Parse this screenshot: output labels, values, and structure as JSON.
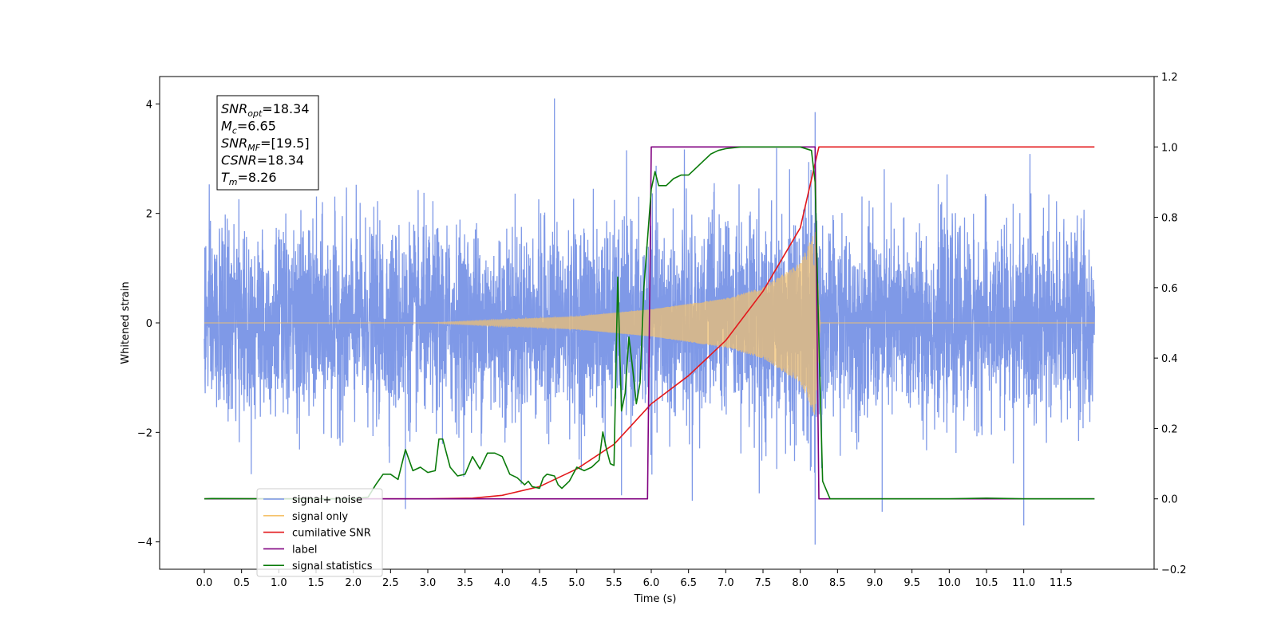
{
  "chart_data": {
    "type": "line",
    "xlabel": "Time (s)",
    "ylabel": "Whitened strain",
    "xlim": [
      -0.6,
      12.75
    ],
    "ylim": [
      -4.5,
      4.5
    ],
    "y2lim": [
      -0.2,
      1.2
    ],
    "x_ticks": [
      0.0,
      0.5,
      1.0,
      1.5,
      2.0,
      2.5,
      3.0,
      3.5,
      4.0,
      4.5,
      5.0,
      5.5,
      6.0,
      6.5,
      7.0,
      7.5,
      8.0,
      8.5,
      9.0,
      9.5,
      10.0,
      10.5,
      11.0,
      11.5
    ],
    "x_tick_labels": [
      "0.0",
      "0.5",
      "1.0",
      "1.5",
      "2.0",
      "2.5",
      "3.0",
      "3.5",
      "4.0",
      "4.5",
      "5.0",
      "5.5",
      "6.0",
      "6.5",
      "7.0",
      "7.5",
      "8.0",
      "8.5",
      "9.0",
      "9.5",
      "10.0",
      "10.5",
      "11.0",
      "11.5"
    ],
    "y_ticks": [
      -4,
      -2,
      0,
      2,
      4
    ],
    "y_tick_labels": [
      "−4",
      "−2",
      "0",
      "2",
      "4"
    ],
    "y2_ticks": [
      -0.2,
      0.0,
      0.2,
      0.4,
      0.6,
      0.8,
      1.0,
      1.2
    ],
    "y2_tick_labels": [
      "−0.2",
      "0.0",
      "0.2",
      "0.4",
      "0.6",
      "0.8",
      "1.0",
      "1.2"
    ],
    "legend_position": "lower-left",
    "annotation": {
      "lines": [
        {
          "main": "SNR",
          "sub": "opt",
          "rest": "=18.34"
        },
        {
          "main": "M",
          "sub": "c",
          "rest": "=6.65"
        },
        {
          "main": "SNR",
          "sub": "MF",
          "rest": "=[19.5]"
        },
        {
          "main": "CSNR",
          "sub": "",
          "rest": "=18.34"
        },
        {
          "main": "T",
          "sub": "m",
          "rest": "=8.26"
        }
      ]
    },
    "series": [
      {
        "name": "signal+ noise",
        "color": "#7893e6",
        "axis": "left",
        "x_start": 0.0,
        "x_end": 11.95,
        "noise_std": 0.85,
        "noise_clip": 3.3,
        "notable_peaks": [
          [
            4.7,
            4.1
          ],
          [
            8.2,
            3.85
          ],
          [
            8.2,
            -4.05
          ],
          [
            5.6,
            -3.15
          ],
          [
            11.0,
            -3.7
          ],
          [
            9.1,
            -3.45
          ],
          [
            2.7,
            -3.4
          ]
        ]
      },
      {
        "name": "signal only",
        "color": "#f5c26b",
        "axis": "left",
        "x_start": 0.0,
        "x_end": 11.95,
        "chirp_start": 3.0,
        "chirp_peak_time": 8.2,
        "chirp_end": 8.27,
        "envelope": [
          [
            3.0,
            0.0
          ],
          [
            5.0,
            0.12
          ],
          [
            6.0,
            0.25
          ],
          [
            7.0,
            0.45
          ],
          [
            7.5,
            0.65
          ],
          [
            8.0,
            1.1
          ],
          [
            8.2,
            1.7
          ],
          [
            8.27,
            0.0
          ]
        ]
      },
      {
        "name": "cumilative SNR",
        "color": "#e3191c",
        "axis": "right",
        "points": [
          [
            0.0,
            0.0
          ],
          [
            3.0,
            0.0
          ],
          [
            3.6,
            0.002
          ],
          [
            4.0,
            0.01
          ],
          [
            4.5,
            0.035
          ],
          [
            5.0,
            0.085
          ],
          [
            5.5,
            0.155
          ],
          [
            6.0,
            0.27
          ],
          [
            6.5,
            0.35
          ],
          [
            7.0,
            0.45
          ],
          [
            7.5,
            0.59
          ],
          [
            8.0,
            0.77
          ],
          [
            8.25,
            1.0
          ],
          [
            11.95,
            1.0
          ]
        ]
      },
      {
        "name": "label",
        "color": "#800080",
        "axis": "right",
        "points": [
          [
            0.0,
            0.0
          ],
          [
            5.95,
            0.0
          ],
          [
            6.0,
            1.0
          ],
          [
            8.2,
            1.0
          ],
          [
            8.25,
            0.0
          ],
          [
            11.95,
            0.0
          ]
        ]
      },
      {
        "name": "signal statistics",
        "color": "#0a7b0a",
        "axis": "right",
        "points": [
          [
            0.0,
            0.0
          ],
          [
            0.1,
            0.001
          ],
          [
            1.0,
            0.0
          ],
          [
            2.0,
            0.0
          ],
          [
            2.2,
            0.005
          ],
          [
            2.3,
            0.04
          ],
          [
            2.4,
            0.07
          ],
          [
            2.5,
            0.07
          ],
          [
            2.6,
            0.055
          ],
          [
            2.7,
            0.14
          ],
          [
            2.8,
            0.08
          ],
          [
            2.9,
            0.09
          ],
          [
            3.0,
            0.075
          ],
          [
            3.1,
            0.08
          ],
          [
            3.15,
            0.17
          ],
          [
            3.2,
            0.17
          ],
          [
            3.3,
            0.09
          ],
          [
            3.4,
            0.065
          ],
          [
            3.5,
            0.07
          ],
          [
            3.6,
            0.12
          ],
          [
            3.7,
            0.085
          ],
          [
            3.8,
            0.13
          ],
          [
            3.9,
            0.13
          ],
          [
            4.0,
            0.12
          ],
          [
            4.1,
            0.07
          ],
          [
            4.2,
            0.06
          ],
          [
            4.3,
            0.04
          ],
          [
            4.35,
            0.05
          ],
          [
            4.4,
            0.035
          ],
          [
            4.5,
            0.03
          ],
          [
            4.55,
            0.06
          ],
          [
            4.6,
            0.07
          ],
          [
            4.7,
            0.065
          ],
          [
            4.75,
            0.04
          ],
          [
            4.8,
            0.03
          ],
          [
            4.9,
            0.05
          ],
          [
            5.0,
            0.09
          ],
          [
            5.1,
            0.08
          ],
          [
            5.2,
            0.09
          ],
          [
            5.3,
            0.11
          ],
          [
            5.35,
            0.19
          ],
          [
            5.4,
            0.14
          ],
          [
            5.45,
            0.1
          ],
          [
            5.5,
            0.095
          ],
          [
            5.55,
            0.63
          ],
          [
            5.6,
            0.25
          ],
          [
            5.65,
            0.3
          ],
          [
            5.7,
            0.46
          ],
          [
            5.75,
            0.37
          ],
          [
            5.8,
            0.27
          ],
          [
            5.85,
            0.33
          ],
          [
            5.9,
            0.6
          ],
          [
            6.0,
            0.88
          ],
          [
            6.05,
            0.93
          ],
          [
            6.1,
            0.89
          ],
          [
            6.2,
            0.89
          ],
          [
            6.3,
            0.91
          ],
          [
            6.4,
            0.92
          ],
          [
            6.5,
            0.92
          ],
          [
            6.6,
            0.94
          ],
          [
            6.7,
            0.96
          ],
          [
            6.8,
            0.98
          ],
          [
            6.9,
            0.99
          ],
          [
            7.0,
            0.995
          ],
          [
            7.2,
            1.0
          ],
          [
            8.0,
            1.0
          ],
          [
            8.15,
            0.99
          ],
          [
            8.2,
            0.9
          ],
          [
            8.25,
            0.45
          ],
          [
            8.3,
            0.05
          ],
          [
            8.4,
            0.0
          ],
          [
            10.0,
            0.0
          ],
          [
            10.5,
            0.002
          ],
          [
            11.0,
            0.0
          ],
          [
            11.95,
            0.0
          ]
        ]
      }
    ]
  }
}
